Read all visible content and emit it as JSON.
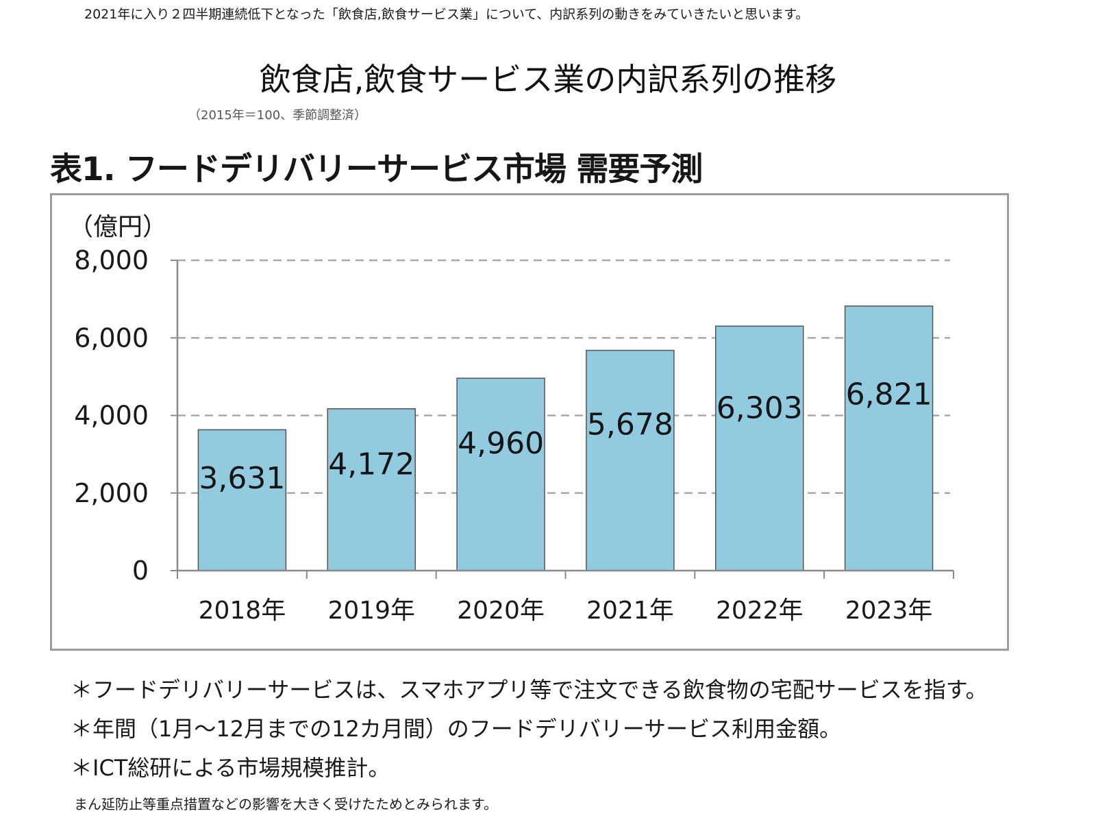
{
  "intro_text": "2021年に入り２四半期連続低下となった「飲食店,飲食サービス業」について、内訳系列の動きをみていきたいと思います。",
  "page_heading": "飲食店,飲食サービス業の内訳系列の推移",
  "clipped_line": "（2015年＝100、季節調整済）",
  "chart_title": "表1. フードデリバリーサービス市場 需要予測",
  "chart_data": {
    "type": "bar",
    "title": "表1. フードデリバリーサービス市場 需要予測",
    "ylabel": "（億円）",
    "xlabel": "",
    "categories": [
      "2018年",
      "2019年",
      "2020年",
      "2021年",
      "2022年",
      "2023年"
    ],
    "values": [
      3631,
      4172,
      4960,
      5678,
      6303,
      6821
    ],
    "value_labels": [
      "3,631",
      "4,172",
      "4,960",
      "5,678",
      "6,303",
      "6,821"
    ],
    "yticks": [
      0,
      2000,
      4000,
      6000,
      8000
    ],
    "ytick_labels": [
      "0",
      "2,000",
      "4,000",
      "6,000",
      "8,000"
    ],
    "ylim": [
      0,
      8000
    ],
    "grid": "dashed horizontal",
    "bar_color": "#92cadf",
    "bar_edge_color": "#555555"
  },
  "notes": [
    "＊フードデリバリーサービスは、スマホアプリ等で注文できる飲食物の宅配サービスを指す。",
    "＊年間（1月～12月までの12カ月間）のフードデリバリーサービス利用金額。",
    "＊ICT総研による市場規模推計。"
  ],
  "footer_text": "まん延防止等重点措置などの影響を大きく受けたためとみられます。"
}
